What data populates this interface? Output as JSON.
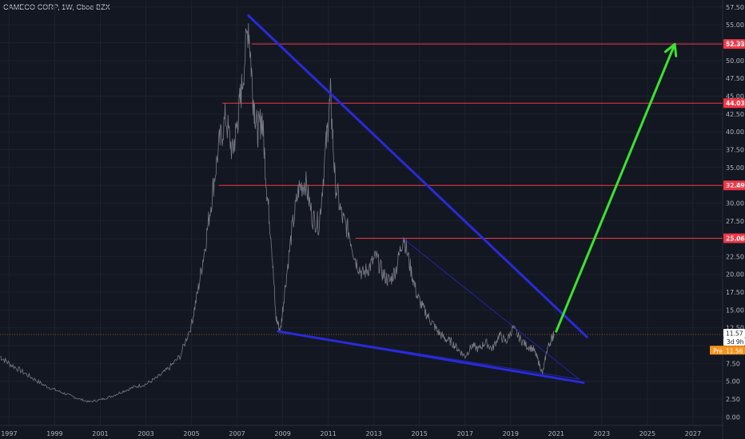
{
  "header": {
    "title": "CAMECO CORP, 1W, Cboe BZX"
  },
  "colors": {
    "background": "#131722",
    "grid": "#1e222d",
    "price_line": "#787b86",
    "level_line": "#f23645",
    "trendline": "#2a2ad8",
    "arrow": "#3ae32f",
    "pre_badge": "#f7931a",
    "axis_text": "#b2b5be"
  },
  "chart_data": {
    "type": "line",
    "title": "CAMECO CORP, 1W, Cboe BZX",
    "xlabel": "",
    "ylabel": "",
    "xlim": [
      1996.6,
      2028.3
    ],
    "ylim": [
      -1.2,
      58.5
    ],
    "grid": true,
    "x_ticks": [
      "1997",
      "1999",
      "2001",
      "2003",
      "2005",
      "2007",
      "2009",
      "2011",
      "2013",
      "2015",
      "2017",
      "2019",
      "2021",
      "2023",
      "2025",
      "2027"
    ],
    "y_ticks": [
      0,
      2.5,
      5,
      7.5,
      10,
      12.5,
      15,
      17.5,
      20,
      22.5,
      25,
      27.5,
      30,
      32.5,
      35,
      37.5,
      40,
      42.5,
      45,
      47.5,
      50,
      52.5,
      55,
      57.5
    ],
    "series": [
      {
        "x": [
          1996.6,
          1997.0,
          1997.5,
          1998.0,
          1998.5,
          1999.0,
          1999.5,
          2000.0,
          2000.5,
          2001.0,
          2001.5,
          2002.0,
          2002.5,
          2003.0,
          2003.5,
          2004.0,
          2004.5,
          2005.0,
          2005.3,
          2005.6,
          2005.9,
          2006.2,
          2006.5,
          2006.8,
          2007.0,
          2007.2,
          2007.5,
          2007.7,
          2007.9,
          2008.1,
          2008.3,
          2008.5,
          2008.7,
          2008.9,
          2009.1,
          2009.4,
          2009.7,
          2010.0,
          2010.3,
          2010.6,
          2010.9,
          2011.1,
          2011.3,
          2011.6,
          2011.9,
          2012.2,
          2012.5,
          2012.8,
          2013.1,
          2013.4,
          2013.7,
          2014.0,
          2014.3,
          2014.6,
          2014.9,
          2015.2,
          2015.5,
          2015.8,
          2016.1,
          2016.4,
          2016.7,
          2017.0,
          2017.3,
          2017.6,
          2017.9,
          2018.2,
          2018.5,
          2018.8,
          2019.1,
          2019.4,
          2019.7,
          2020.0,
          2020.2,
          2020.4,
          2020.6,
          2020.8,
          2020.9
        ],
        "values": [
          8.5,
          7.5,
          6.5,
          5.5,
          4.5,
          3.8,
          3.2,
          2.6,
          2.1,
          2.4,
          2.9,
          3.6,
          4.2,
          4.6,
          5.5,
          6.8,
          8.5,
          13.0,
          18.0,
          24.0,
          31.0,
          38.0,
          42.0,
          37.0,
          41.0,
          46.0,
          55.5,
          45.0,
          40.0,
          42.0,
          32.0,
          25.0,
          14.0,
          12.0,
          18.0,
          26.0,
          32.0,
          33.0,
          28.0,
          27.0,
          38.0,
          45.0,
          33.0,
          28.0,
          26.0,
          22.0,
          20.0,
          21.0,
          22.5,
          20.0,
          19.0,
          21.0,
          25.5,
          21.0,
          17.0,
          15.0,
          13.5,
          12.0,
          11.0,
          10.5,
          9.5,
          8.5,
          10.0,
          9.5,
          10.5,
          9.5,
          11.5,
          10.5,
          12.5,
          11.0,
          10.0,
          9.5,
          8.0,
          6.0,
          9.5,
          11.0,
          11.57
        ]
      }
    ],
    "horizontal_levels": [
      {
        "label": "52.33",
        "value": 52.33,
        "x_start": 2007.65
      },
      {
        "label": "44.03",
        "value": 44.03,
        "x_start": 2006.35
      },
      {
        "label": "32.49",
        "value": 32.49,
        "x_start": 2006.2
      },
      {
        "label": "25.06",
        "value": 25.06,
        "x_start": 2012.2
      }
    ],
    "trendlines": [
      {
        "name": "upper",
        "from": [
          2007.5,
          56.3
        ],
        "to": [
          2022.35,
          11.2
        ],
        "width": 3
      },
      {
        "name": "lower",
        "from": [
          2008.8,
          12.0
        ],
        "to": [
          2022.2,
          4.8
        ],
        "width": 3
      },
      {
        "name": "inner-upper",
        "from": [
          2014.3,
          25.0
        ],
        "to": [
          2022.0,
          5.3
        ],
        "width": 1
      },
      {
        "name": "inner-lower",
        "from": [
          2008.8,
          12.0
        ],
        "to": [
          2022.0,
          5.3
        ],
        "width": 1
      }
    ],
    "arrow": {
      "from": [
        2021.0,
        12.0
      ],
      "to": [
        2026.2,
        52.3
      ]
    },
    "current_price": {
      "value": 11.57,
      "label": "11.57",
      "countdown": "3d 9h"
    },
    "pre_market": {
      "label": "Pre",
      "value": "11.56"
    }
  }
}
